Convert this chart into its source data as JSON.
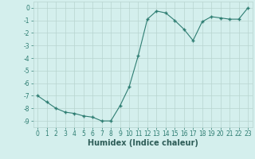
{
  "x": [
    0,
    1,
    2,
    3,
    4,
    5,
    6,
    7,
    8,
    9,
    10,
    11,
    12,
    13,
    14,
    15,
    16,
    17,
    18,
    19,
    20,
    21,
    22,
    23
  ],
  "y": [
    -7.0,
    -7.5,
    -8.0,
    -8.3,
    -8.4,
    -8.6,
    -8.7,
    -9.0,
    -9.0,
    -7.8,
    -6.3,
    -3.8,
    -0.9,
    -0.25,
    -0.4,
    -1.0,
    -1.7,
    -2.6,
    -1.1,
    -0.7,
    -0.8,
    -0.9,
    -0.9,
    0.0
  ],
  "line_color": "#2e7d72",
  "marker": "+",
  "marker_size": 3,
  "marker_lw": 1.0,
  "xlabel": "Humidex (Indice chaleur)",
  "xlim": [
    -0.5,
    23.5
  ],
  "ylim": [
    -9.5,
    0.5
  ],
  "yticks": [
    0,
    -1,
    -2,
    -3,
    -4,
    -5,
    -6,
    -7,
    -8,
    -9
  ],
  "xtick_labels": [
    "0",
    "1",
    "2",
    "3",
    "4",
    "5",
    "6",
    "7",
    "8",
    "9",
    "10",
    "11",
    "12",
    "13",
    "14",
    "15",
    "16",
    "17",
    "18",
    "19",
    "20",
    "21",
    "22",
    "23"
  ],
  "bg_color": "#d4efed",
  "grid_major_color": "#b8d4d0",
  "grid_minor_color": "#c8e4e0",
  "fig_bg": "#d4efed",
  "tick_color": "#2e7d72",
  "label_color": "#2e5d58",
  "xlabel_fontsize": 7,
  "tick_fontsize": 5.5
}
